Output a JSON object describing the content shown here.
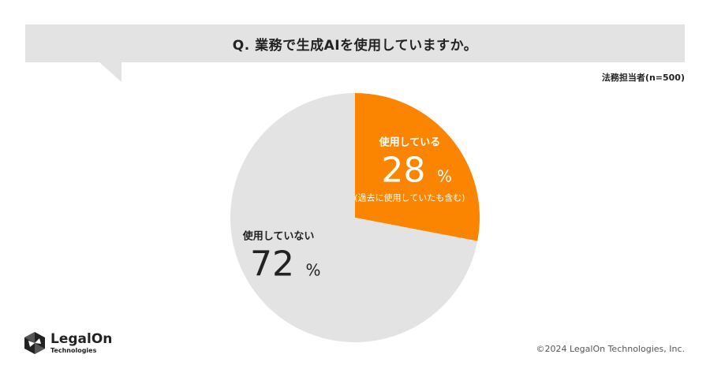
{
  "header": {
    "question": "Q. 業務で生成AIを使用していますか。",
    "sample": "法務担当者(n=500)"
  },
  "chart_data": {
    "type": "pie",
    "title": "Q. 業務で生成AIを使用していますか。",
    "slices": [
      {
        "label": "使用している",
        "value": 28,
        "unit": "%",
        "note": "(過去に使用していたも含む)",
        "color": "#fb8500"
      },
      {
        "label": "使用していない",
        "value": 72,
        "unit": "%",
        "note": "",
        "color": "#e3e3e3"
      }
    ]
  },
  "footer": {
    "logo_name": "LegalOn",
    "logo_sub": "Technologies",
    "copyright": "©2024 LegalOn Technologies, Inc."
  }
}
